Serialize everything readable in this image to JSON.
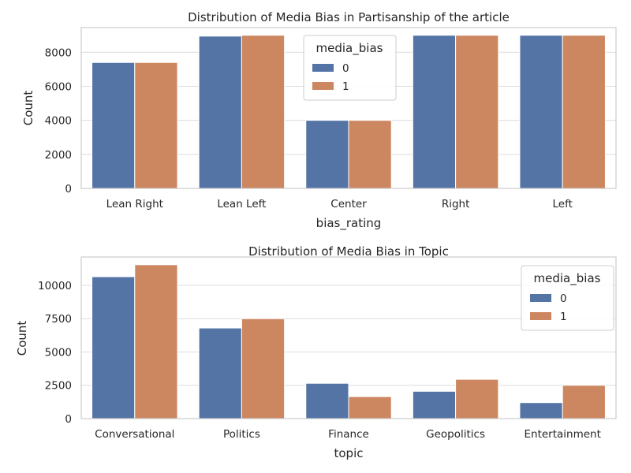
{
  "colors": {
    "series0": "#5574a6",
    "series1": "#cc8660",
    "grid": "#dcdcdc",
    "spine": "#cccccc"
  },
  "chart_data": [
    {
      "type": "bar",
      "title": "Distribution of Media Bias in Partisanship of the article",
      "xlabel": "bias_rating",
      "ylabel": "Count",
      "categories": [
        "Lean Right",
        "Lean Left",
        "Center",
        "Right",
        "Left"
      ],
      "series": [
        {
          "name": "0",
          "values": [
            7400,
            8950,
            4000,
            9000,
            9000
          ]
        },
        {
          "name": "1",
          "values": [
            7400,
            9000,
            4000,
            9000,
            9000
          ]
        }
      ],
      "ylim": [
        0,
        9450
      ],
      "yticks": [
        0,
        2000,
        4000,
        6000,
        8000
      ],
      "ytick_labels": [
        "0",
        "2000",
        "4000",
        "6000",
        "8000"
      ],
      "legend": {
        "title": "media_bias",
        "position": "upper-center"
      },
      "grid": true
    },
    {
      "type": "bar",
      "title": "Distribution of Media Bias in Topic",
      "xlabel": "topic",
      "ylabel": "Count",
      "categories": [
        "Conversational",
        "Politics",
        "Finance",
        "Geopolitics",
        "Entertainment"
      ],
      "series": [
        {
          "name": "0",
          "values": [
            10650,
            6800,
            2650,
            2050,
            1200
          ]
        },
        {
          "name": "1",
          "values": [
            11550,
            7500,
            1650,
            2950,
            2500
          ]
        }
      ],
      "ylim": [
        0,
        12130
      ],
      "yticks": [
        0,
        2500,
        5000,
        7500,
        10000
      ],
      "ytick_labels": [
        "0",
        "2500",
        "5000",
        "7500",
        "10000"
      ],
      "legend": {
        "title": "media_bias",
        "position": "upper-right"
      },
      "grid": true
    }
  ]
}
